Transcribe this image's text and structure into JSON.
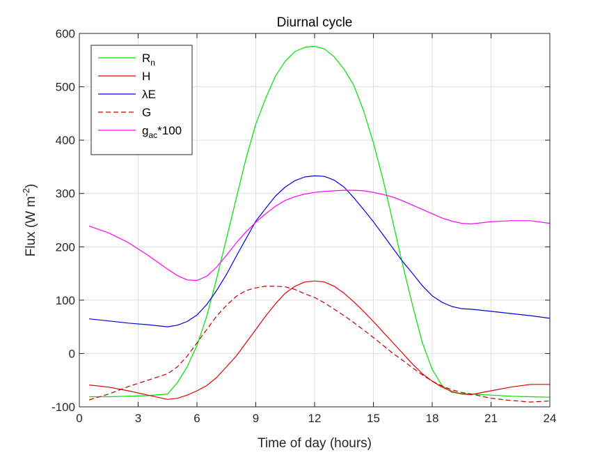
{
  "chart_data": {
    "type": "line",
    "title": "Diurnal cycle",
    "xlabel": "Time of day (hours)",
    "ylabel": "Flux (W m",
    "ylabel_sup": "-2",
    "ylabel_close": ")",
    "xlim": [
      0,
      24
    ],
    "ylim": [
      -100,
      600
    ],
    "xticks": [
      0,
      3,
      6,
      9,
      12,
      15,
      18,
      21,
      24
    ],
    "xtick_labels": [
      "0",
      "3",
      "6",
      "9",
      "12",
      "15",
      "18",
      "21",
      "24"
    ],
    "yticks": [
      -100,
      0,
      100,
      200,
      300,
      400,
      500,
      600
    ],
    "ytick_labels": [
      "-100",
      "0",
      "100",
      "200",
      "300",
      "400",
      "500",
      "600"
    ],
    "grid": true,
    "legend_position": "top-left",
    "series": [
      {
        "name": "R",
        "name_sub": "n",
        "color": "#00e000",
        "dash": "solid",
        "x": [
          0.5,
          1.5,
          2.5,
          3.5,
          4.5,
          5,
          5.5,
          6,
          6.5,
          7,
          7.5,
          8,
          8.5,
          9,
          9.5,
          10,
          10.5,
          11,
          11.5,
          12,
          12.5,
          13,
          13.5,
          14,
          14.5,
          15,
          15.5,
          16,
          16.5,
          17,
          17.5,
          18,
          18.5,
          19,
          19.5,
          20,
          21,
          22,
          23,
          24
        ],
        "values": [
          -81,
          -81,
          -80,
          -79,
          -76,
          -55,
          -25,
          15,
          70,
          140,
          215,
          290,
          365,
          430,
          478,
          520,
          548,
          566,
          574,
          576,
          571,
          556,
          533,
          503,
          455,
          395,
          325,
          245,
          165,
          90,
          20,
          -30,
          -60,
          -73,
          -75,
          -76,
          -78,
          -80,
          -81,
          -82
        ]
      },
      {
        "name": "H",
        "color": "#e00000",
        "dash": "solid",
        "x": [
          0.5,
          1.5,
          2.5,
          3.5,
          4.5,
          5,
          5.5,
          6,
          6.5,
          7,
          7.5,
          8,
          8.5,
          9,
          9.5,
          10,
          10.5,
          11,
          11.5,
          12,
          12.5,
          13,
          13.5,
          14,
          14.5,
          15,
          15.5,
          16,
          16.5,
          17,
          17.5,
          18,
          18.5,
          19,
          19.5,
          20,
          21,
          22,
          23,
          24
        ],
        "values": [
          -59,
          -63,
          -70,
          -78,
          -86,
          -84,
          -78,
          -70,
          -60,
          -45,
          -25,
          -5,
          20,
          45,
          70,
          93,
          113,
          126,
          134,
          136,
          134,
          126,
          113,
          97,
          79,
          60,
          40,
          20,
          0,
          -20,
          -38,
          -52,
          -63,
          -71,
          -76,
          -77,
          -70,
          -63,
          -58,
          -58
        ]
      },
      {
        "name": "λE",
        "color": "#0000e0",
        "dash": "solid",
        "x": [
          0.5,
          1.5,
          2.5,
          3.5,
          4.5,
          5,
          5.5,
          6,
          6.5,
          7,
          7.5,
          8,
          8.5,
          9,
          9.5,
          10,
          10.5,
          11,
          11.5,
          12,
          12.5,
          13,
          13.5,
          14,
          14.5,
          15,
          15.5,
          16,
          16.5,
          17,
          17.5,
          18,
          18.5,
          19,
          19.5,
          20,
          21,
          22,
          23,
          24
        ],
        "values": [
          65,
          61,
          57,
          54,
          50,
          53,
          60,
          72,
          92,
          118,
          148,
          182,
          215,
          248,
          272,
          295,
          312,
          324,
          331,
          333,
          332,
          325,
          312,
          292,
          270,
          247,
          222,
          197,
          172,
          150,
          127,
          108,
          96,
          88,
          84,
          83,
          79,
          75,
          71,
          66
        ]
      },
      {
        "name": "G",
        "color": "#c00000",
        "dash": "dashed",
        "x": [
          0.5,
          1.5,
          2.5,
          3.5,
          4.5,
          5,
          5.5,
          6,
          6.5,
          7,
          7.5,
          8,
          8.5,
          9,
          9.5,
          10,
          10.5,
          11,
          11.5,
          12,
          12.5,
          13,
          13.5,
          14,
          14.5,
          15,
          15.5,
          16,
          16.5,
          17,
          17.5,
          18,
          18.5,
          19,
          19.5,
          20,
          21,
          22,
          23,
          24
        ],
        "values": [
          -87,
          -76,
          -62,
          -50,
          -38,
          -25,
          -5,
          20,
          45,
          70,
          90,
          107,
          118,
          123,
          126,
          126,
          125,
          120,
          112,
          105,
          95,
          83,
          71,
          58,
          44,
          30,
          15,
          0,
          -13,
          -27,
          -40,
          -52,
          -61,
          -68,
          -73,
          -76,
          -84,
          -88,
          -91,
          -89
        ]
      },
      {
        "name": "g",
        "name_sub": "ac",
        "name_suffix": "*100",
        "color": "#ff00ff",
        "dash": "solid",
        "x": [
          0.5,
          1.5,
          2.5,
          3.5,
          4.5,
          5,
          5.5,
          6,
          6.5,
          7,
          7.5,
          8,
          8.5,
          9,
          9.5,
          10,
          10.5,
          11,
          11.5,
          12,
          12.5,
          13,
          13.5,
          14,
          14.5,
          15,
          15.5,
          16,
          16.5,
          17,
          17.5,
          18,
          18.5,
          19,
          19.5,
          20,
          21,
          22,
          23,
          24
        ],
        "values": [
          239,
          226,
          208,
          184,
          158,
          146,
          138,
          137,
          145,
          162,
          184,
          207,
          228,
          246,
          262,
          276,
          287,
          294,
          299,
          302,
          304,
          305,
          306,
          306,
          305,
          302,
          298,
          293,
          286,
          278,
          270,
          262,
          254,
          248,
          244,
          243,
          247,
          249,
          249,
          244
        ]
      }
    ]
  }
}
